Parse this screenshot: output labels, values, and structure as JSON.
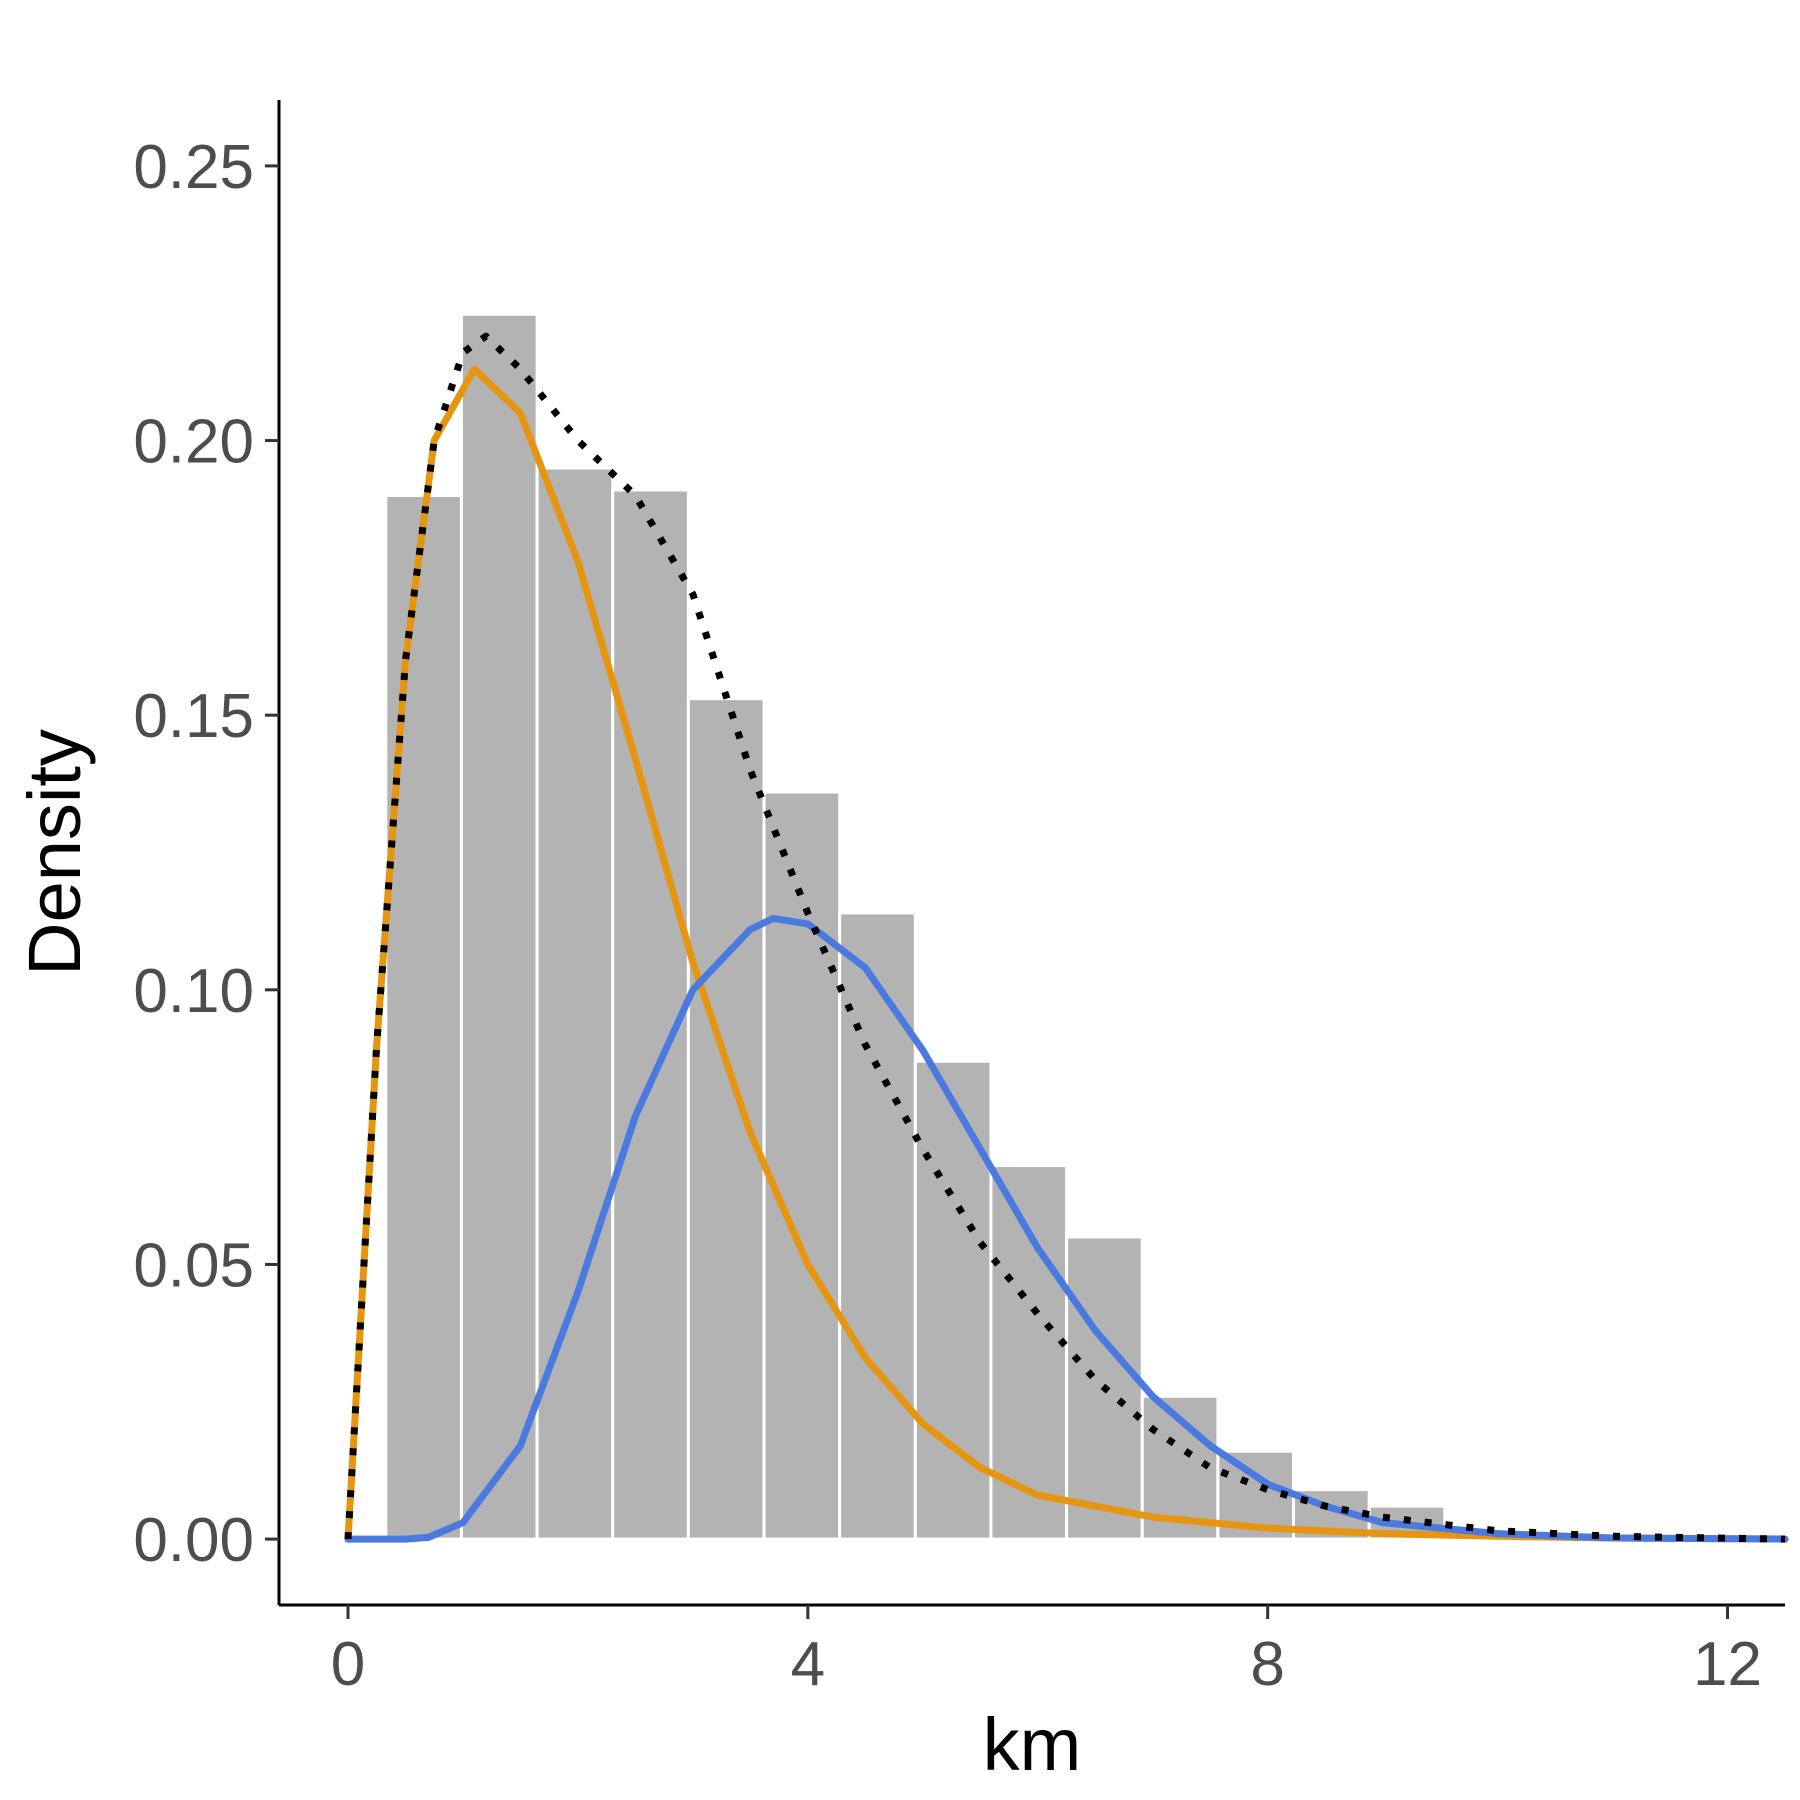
{
  "chart_data": {
    "type": "bar",
    "title": "",
    "xlabel": "km",
    "ylabel": "Density",
    "xlim": [
      -0.6,
      12.5
    ],
    "ylim": [
      -0.012,
      0.262
    ],
    "x_ticks": [
      0,
      4,
      8,
      12
    ],
    "x_tick_labels": [
      "0",
      "4",
      "8",
      "12"
    ],
    "y_ticks": [
      0,
      0.05,
      0.1,
      0.15,
      0.2,
      0.25
    ],
    "y_tick_labels": [
      "0.00",
      "0.05",
      "0.10",
      "0.15",
      "0.20",
      "0.25"
    ],
    "grid": false,
    "legend": "none",
    "bar_color": "#b3b3b3",
    "histogram": {
      "bin_width": 0.658,
      "bin_centers": [
        0.658,
        1.316,
        1.974,
        2.632,
        3.29,
        3.948,
        4.606,
        5.264,
        5.922,
        6.58,
        7.238,
        7.896,
        8.554,
        9.212
      ],
      "values": [
        0.19,
        0.223,
        0.195,
        0.191,
        0.153,
        0.136,
        0.114,
        0.087,
        0.068,
        0.055,
        0.026,
        0.016,
        0.009,
        0.006
      ]
    },
    "series": [
      {
        "style": "solid",
        "color": "#e69511",
        "x": [
          0,
          0.25,
          0.5,
          0.75,
          1.1,
          1.5,
          2,
          2.5,
          3,
          3.5,
          4,
          4.5,
          5,
          5.5,
          6,
          7,
          8,
          9,
          10,
          11,
          12.5
        ],
        "y": [
          0,
          0.09,
          0.16,
          0.2,
          0.213,
          0.205,
          0.178,
          0.142,
          0.105,
          0.074,
          0.05,
          0.033,
          0.021,
          0.013,
          0.008,
          0.004,
          0.002,
          0.001,
          0.0005,
          0.0002,
          0
        ]
      },
      {
        "style": "solid",
        "color": "#4a7ae0",
        "x": [
          0,
          0.5,
          0.7,
          1,
          1.5,
          2,
          2.5,
          3,
          3.5,
          3.7,
          4,
          4.5,
          5,
          5.5,
          6,
          6.5,
          7,
          7.5,
          8,
          8.5,
          9,
          10,
          11,
          12.5
        ],
        "y": [
          0,
          0,
          0.0003,
          0.003,
          0.017,
          0.045,
          0.077,
          0.1,
          0.111,
          0.113,
          0.112,
          0.104,
          0.089,
          0.071,
          0.053,
          0.038,
          0.026,
          0.017,
          0.01,
          0.006,
          0.003,
          0.001,
          0.0002,
          0
        ]
      },
      {
        "style": "dotted",
        "color": "#000000",
        "x": [
          0,
          0.25,
          0.5,
          0.75,
          1,
          1.2,
          1.5,
          2,
          2.5,
          3,
          3.5,
          4,
          4.5,
          5,
          5.5,
          6,
          6.5,
          7,
          7.5,
          8,
          8.5,
          9,
          10,
          11,
          12.5
        ],
        "y": [
          0,
          0.09,
          0.16,
          0.2,
          0.216,
          0.219,
          0.213,
          0.2,
          0.19,
          0.172,
          0.14,
          0.114,
          0.09,
          0.071,
          0.054,
          0.041,
          0.029,
          0.02,
          0.013,
          0.009,
          0.006,
          0.004,
          0.0015,
          0.0005,
          0
        ]
      }
    ]
  }
}
